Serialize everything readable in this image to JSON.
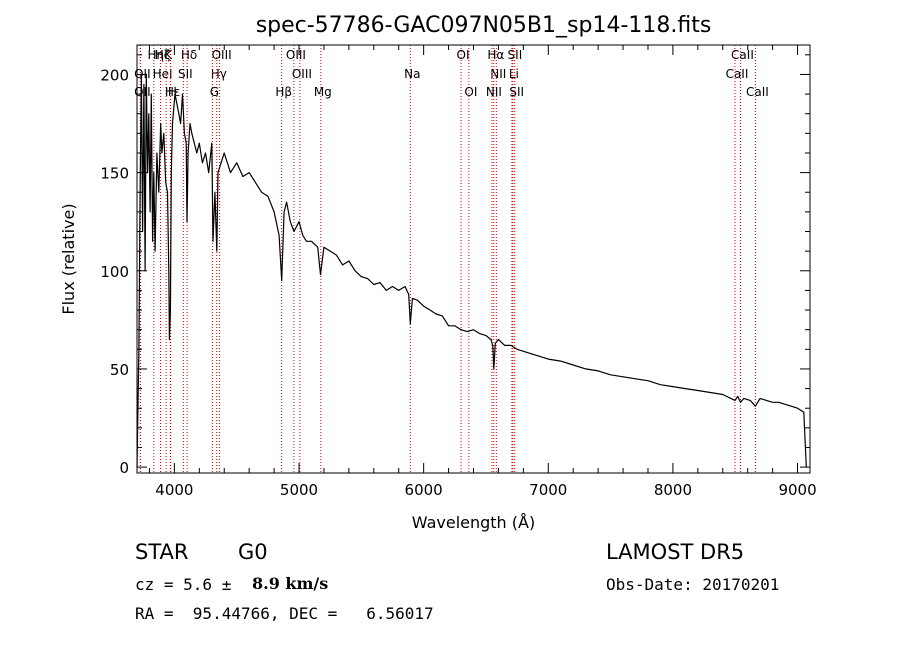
{
  "chart_data": {
    "type": "line",
    "title": "spec-57786-GAC097N05B1_sp14-118.fits",
    "xlabel": "Wavelength (Å)",
    "ylabel": "Flux (relative)",
    "xlim": [
      3700,
      9100
    ],
    "ylim": [
      -3,
      215
    ],
    "xticks": [
      4000,
      5000,
      6000,
      7000,
      8000,
      9000
    ],
    "yticks": [
      0,
      50,
      100,
      150,
      200
    ],
    "grid": false,
    "line_color": "#000000",
    "marker_color": "#cc0000",
    "series": [
      {
        "x": [
          3700,
          3715,
          3725,
          3735,
          3745,
          3755,
          3765,
          3775,
          3785,
          3795,
          3805,
          3815,
          3825,
          3835,
          3845,
          3860,
          3875,
          3890,
          3900,
          3915,
          3930,
          3945,
          3955,
          3960,
          3968,
          3975,
          3985,
          3995,
          4005,
          4020,
          4035,
          4050,
          4065,
          4080,
          4095,
          4101,
          4110,
          4125,
          4140,
          4160,
          4180,
          4200,
          4225,
          4250,
          4275,
          4300,
          4310,
          4325,
          4340,
          4350,
          4375,
          4400,
          4450,
          4500,
          4550,
          4600,
          4650,
          4700,
          4750,
          4800,
          4840,
          4861,
          4880,
          4900,
          4930,
          4960,
          5000,
          5030,
          5060,
          5100,
          5150,
          5172,
          5200,
          5250,
          5300,
          5350,
          5400,
          5450,
          5500,
          5550,
          5600,
          5650,
          5700,
          5750,
          5800,
          5850,
          5880,
          5893,
          5910,
          5950,
          6000,
          6050,
          6100,
          6150,
          6200,
          6250,
          6300,
          6350,
          6400,
          6450,
          6500,
          6540,
          6555,
          6563,
          6575,
          6600,
          6650,
          6700,
          6750,
          6800,
          6900,
          7000,
          7100,
          7200,
          7300,
          7400,
          7500,
          7600,
          7700,
          7800,
          7900,
          8000,
          8100,
          8200,
          8300,
          8400,
          8498,
          8520,
          8542,
          8570,
          8620,
          8662,
          8700,
          8750,
          8800,
          8850,
          8900,
          8950,
          9000,
          9050,
          9070
        ],
        "y": [
          0,
          60,
          140,
          200,
          120,
          195,
          100,
          200,
          150,
          180,
          130,
          190,
          115,
          150,
          110,
          160,
          140,
          175,
          160,
          170,
          145,
          140,
          100,
          65,
          80,
          150,
          175,
          183,
          190,
          185,
          180,
          175,
          190,
          170,
          165,
          125,
          160,
          175,
          170,
          165,
          160,
          165,
          155,
          160,
          150,
          165,
          115,
          140,
          110,
          150,
          155,
          160,
          150,
          155,
          148,
          150,
          145,
          140,
          138,
          130,
          118,
          95,
          130,
          135,
          125,
          120,
          125,
          118,
          115,
          115,
          112,
          98,
          112,
          110,
          108,
          103,
          105,
          100,
          97,
          96,
          93,
          94,
          90,
          92,
          90,
          92,
          88,
          73,
          86,
          85,
          82,
          80,
          78,
          77,
          72,
          72,
          70,
          69,
          70,
          68,
          67,
          65,
          62,
          50,
          63,
          65,
          62,
          62,
          60,
          59,
          57,
          55,
          54,
          52,
          50,
          49,
          47,
          46,
          45,
          44,
          42,
          41,
          40,
          39,
          38,
          37,
          34,
          36,
          33,
          35,
          34,
          31,
          35,
          34,
          33,
          33,
          32,
          31,
          30,
          28,
          0
        ]
      }
    ],
    "lines": [
      {
        "label": "Hη",
        "x": 3835,
        "row": 0
      },
      {
        "label": "Hζ",
        "x": 3889,
        "row": 0
      },
      {
        "label": "K",
        "x": 3934,
        "row": 0
      },
      {
        "label": "Hδ",
        "x": 4102,
        "row": 0
      },
      {
        "label": "OIII",
        "x": 4363,
        "row": 0
      },
      {
        "label": "OIII",
        "x": 4959,
        "row": 0
      },
      {
        "label": "OI",
        "x": 6300,
        "row": 0
      },
      {
        "label": "Hα",
        "x": 6563,
        "row": 0
      },
      {
        "label": "SII",
        "x": 6716,
        "row": 0
      },
      {
        "label": "CaII",
        "x": 8542,
        "row": 0
      },
      {
        "label": "OII",
        "x": 3727,
        "row": 1
      },
      {
        "label": "HeI",
        "x": 3889,
        "row": 1
      },
      {
        "label": "SII",
        "x": 4072,
        "row": 1
      },
      {
        "label": "Hγ",
        "x": 4340,
        "row": 1
      },
      {
        "label": "OIII",
        "x": 5007,
        "row": 1
      },
      {
        "label": "Na",
        "x": 5893,
        "row": 1
      },
      {
        "label": "NII",
        "x": 6583,
        "row": 1
      },
      {
        "label": "Li",
        "x": 6708,
        "row": 1
      },
      {
        "label": "CaII",
        "x": 8498,
        "row": 1
      },
      {
        "label": "OII",
        "x": 3727,
        "row": 2
      },
      {
        "label": "Hε",
        "x": 3970,
        "row": 2
      },
      {
        "label": "H",
        "x": 3968,
        "row": 2
      },
      {
        "label": "G",
        "x": 4305,
        "row": 2
      },
      {
        "label": "Hβ",
        "x": 4861,
        "row": 2
      },
      {
        "label": "Mg",
        "x": 5175,
        "row": 2
      },
      {
        "label": "OI",
        "x": 6363,
        "row": 2
      },
      {
        "label": "NII",
        "x": 6548,
        "row": 2
      },
      {
        "label": "SII",
        "x": 6731,
        "row": 2
      },
      {
        "label": "CaII",
        "x": 8662,
        "row": 2
      }
    ]
  },
  "info": {
    "object_type": "STAR",
    "subclass": "G0",
    "survey": "LAMOST DR5",
    "cz_label": "cz = 5.6 ±",
    "cz_error": "8.9 km/s",
    "obs_date": "Obs-Date: 20170201",
    "coords": "RA =  95.44766, DEC =   6.56017"
  }
}
